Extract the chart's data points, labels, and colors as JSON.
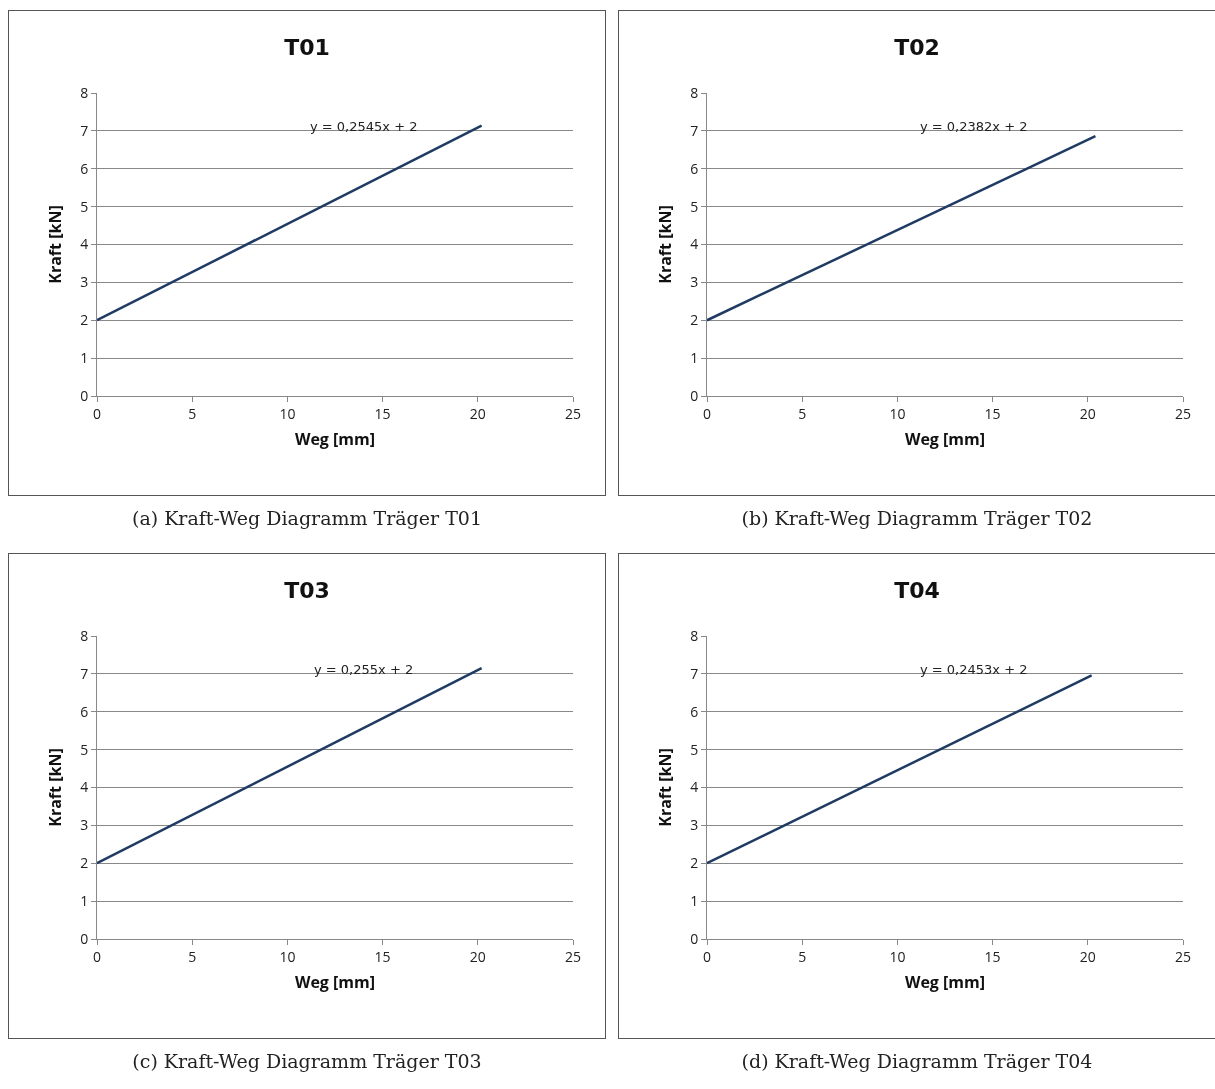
{
  "chart_data": [
    {
      "type": "line",
      "title": "T01",
      "xlabel": "Weg [mm]",
      "ylabel": "Kraft [kN]",
      "x": [
        0,
        20.2
      ],
      "series": [
        {
          "color": "#1f3b63",
          "values": [
            2,
            7.14
          ]
        }
      ],
      "xlim": [
        0,
        25
      ],
      "xticks": [
        0,
        5,
        10,
        15,
        20,
        25
      ],
      "ylim": [
        0,
        8
      ],
      "yticks": [
        0,
        1,
        2,
        3,
        4,
        5,
        6,
        7,
        8
      ],
      "grid": "y",
      "marker": "none",
      "line_style": "solid",
      "annotations": [
        "y = 0,2545x + 2",
        "(a) Kraft-Weg Diagramm Träger T01"
      ]
    },
    {
      "type": "line",
      "title": "T02",
      "xlabel": "Weg [mm]",
      "ylabel": "Kraft [kN]",
      "x": [
        0,
        20.4
      ],
      "series": [
        {
          "color": "#1f3b63",
          "values": [
            2,
            6.86
          ]
        }
      ],
      "xlim": [
        0,
        25
      ],
      "xticks": [
        0,
        5,
        10,
        15,
        20,
        25
      ],
      "ylim": [
        0,
        8
      ],
      "yticks": [
        0,
        1,
        2,
        3,
        4,
        5,
        6,
        7,
        8
      ],
      "grid": "y",
      "marker": "none",
      "line_style": "solid",
      "annotations": [
        "y = 0,2382x + 2",
        "(b) Kraft-Weg Diagramm Träger T02"
      ]
    },
    {
      "type": "line",
      "title": "T03",
      "xlabel": "Weg [mm]",
      "ylabel": "Kraft [kN]",
      "x": [
        0,
        20.2
      ],
      "series": [
        {
          "color": "#1f3b63",
          "values": [
            2,
            7.15
          ]
        }
      ],
      "xlim": [
        0,
        25
      ],
      "xticks": [
        0,
        5,
        10,
        15,
        20,
        25
      ],
      "ylim": [
        0,
        8
      ],
      "yticks": [
        0,
        1,
        2,
        3,
        4,
        5,
        6,
        7,
        8
      ],
      "grid": "y",
      "marker": "none",
      "line_style": "solid",
      "annotations": [
        "y = 0,255x + 2",
        "(c) Kraft-Weg Diagramm Träger T03"
      ]
    },
    {
      "type": "line",
      "title": "T04",
      "xlabel": "Weg [mm]",
      "ylabel": "Kraft [kN]",
      "x": [
        0,
        20.2
      ],
      "series": [
        {
          "color": "#1f3b63",
          "values": [
            2,
            6.96
          ]
        }
      ],
      "xlim": [
        0,
        25
      ],
      "xticks": [
        0,
        5,
        10,
        15,
        20,
        25
      ],
      "ylim": [
        0,
        8
      ],
      "yticks": [
        0,
        1,
        2,
        3,
        4,
        5,
        6,
        7,
        8
      ],
      "grid": "y",
      "marker": "none",
      "line_style": "solid",
      "annotations": [
        "y = 0,2453x + 2",
        "(d) Kraft-Weg Diagramm Träger T04"
      ]
    }
  ]
}
